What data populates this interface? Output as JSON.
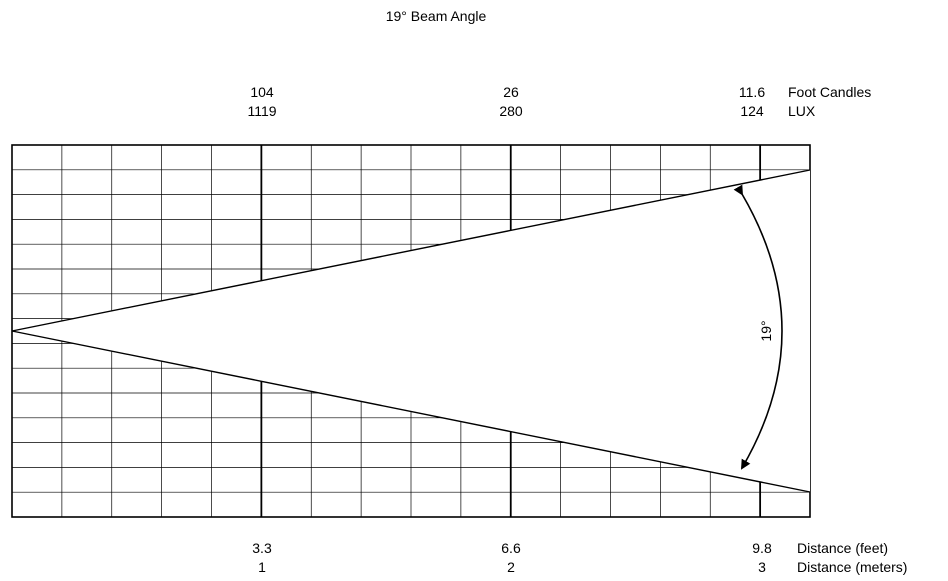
{
  "title": "19° Beam Angle",
  "beam_angle_label": "19°",
  "columns": [
    {
      "foot_candles": "104",
      "lux": "1119",
      "distance_feet": "3.3",
      "distance_meters": "1"
    },
    {
      "foot_candles": "26",
      "lux": "280",
      "distance_feet": "6.6",
      "distance_meters": "2"
    },
    {
      "foot_candles": "11.6",
      "lux": "124",
      "distance_feet": "9.8",
      "distance_meters": "3"
    }
  ],
  "row_labels": {
    "foot_candles": "Foot Candles",
    "lux": "LUX",
    "distance_feet": "Distance (feet)",
    "distance_meters": "Distance (meters)"
  }
}
